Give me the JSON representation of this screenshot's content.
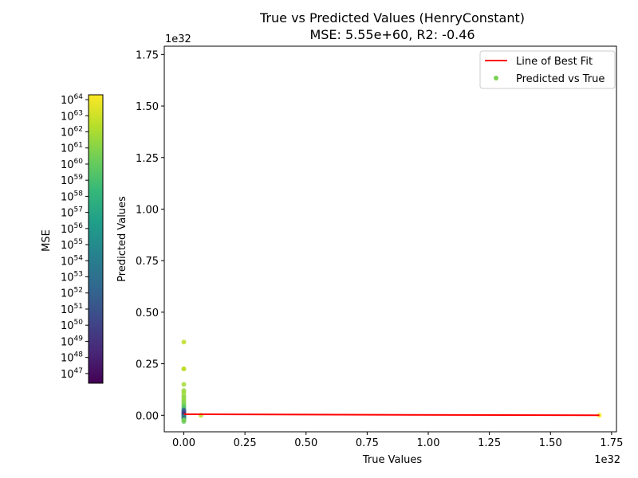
{
  "chart_data": {
    "type": "scatter",
    "title_line1": "True vs Predicted Values (HenryConstant)",
    "title_line2": "MSE: 5.55e+60, R2: -0.46",
    "xlabel": "True Values",
    "ylabel": "Predicted Values",
    "x_offset_text": "1e32",
    "y_offset_text": "1e32",
    "xlim": [
      -0.08,
      1.77
    ],
    "ylim": [
      -0.08,
      1.79
    ],
    "x_ticks": [
      "0.00",
      "0.25",
      "0.50",
      "0.75",
      "1.00",
      "1.25",
      "1.50",
      "1.75"
    ],
    "x_tick_values": [
      0.0,
      0.25,
      0.5,
      0.75,
      1.0,
      1.25,
      1.5,
      1.75
    ],
    "y_ticks": [
      "0.00",
      "0.25",
      "0.50",
      "0.75",
      "1.00",
      "1.25",
      "1.50",
      "1.75"
    ],
    "y_tick_values": [
      0.0,
      0.25,
      0.5,
      0.75,
      1.0,
      1.25,
      1.5,
      1.75
    ],
    "best_fit_line": {
      "name": "Line of Best Fit",
      "color": "#ff0000",
      "x": [
        0.0,
        1.7
      ],
      "y": [
        0.005,
        0.0
      ]
    },
    "scatter_series": {
      "name": "Predicted vs True",
      "legend_color": "#7ad151",
      "points": [
        {
          "x": 0.0,
          "y": 0.355,
          "color": "#bddf26"
        },
        {
          "x": 0.0,
          "y": 0.225,
          "color": "#b5de2b"
        },
        {
          "x": 0.0,
          "y": 0.225,
          "color": "#bddf26"
        },
        {
          "x": 0.0,
          "y": 0.15,
          "color": "#a5db36"
        },
        {
          "x": 0.0,
          "y": 0.12,
          "color": "#95d840"
        },
        {
          "x": 0.0,
          "y": 0.11,
          "color": "#a0da39"
        },
        {
          "x": 0.0,
          "y": 0.095,
          "color": "#95d840"
        },
        {
          "x": 0.0,
          "y": 0.085,
          "color": "#8ed645"
        },
        {
          "x": 0.0,
          "y": 0.075,
          "color": "#95d840"
        },
        {
          "x": 0.0,
          "y": 0.065,
          "color": "#86d549"
        },
        {
          "x": 0.0,
          "y": 0.055,
          "color": "#7ad151"
        },
        {
          "x": 0.0,
          "y": 0.045,
          "color": "#6ccd5a"
        },
        {
          "x": 0.0,
          "y": 0.035,
          "color": "#4ac16d"
        },
        {
          "x": 0.0,
          "y": 0.025,
          "color": "#31688e"
        },
        {
          "x": 0.0,
          "y": 0.018,
          "color": "#3b528b"
        },
        {
          "x": 0.0,
          "y": 0.01,
          "color": "#414487"
        },
        {
          "x": 0.0,
          "y": 0.005,
          "color": "#472c7a"
        },
        {
          "x": 0.0,
          "y": 0.0,
          "color": "#3b528b"
        },
        {
          "x": 0.0,
          "y": -0.005,
          "color": "#2c728e"
        },
        {
          "x": 0.0,
          "y": -0.01,
          "color": "#21918c"
        },
        {
          "x": 0.0,
          "y": -0.015,
          "color": "#3b528b"
        },
        {
          "x": 0.0,
          "y": -0.02,
          "color": "#52c569"
        },
        {
          "x": 0.0,
          "y": -0.025,
          "color": "#7ad151"
        },
        {
          "x": 0.0,
          "y": -0.03,
          "color": "#6ccd5a"
        },
        {
          "x": 0.07,
          "y": 0.0,
          "color": "#bddf26"
        },
        {
          "x": 1.7,
          "y": 0.0,
          "color": "#fde725"
        }
      ]
    },
    "legend_position": "top-right",
    "colorbar": {
      "label": "MSE",
      "scale": "log",
      "min_exp": 46.4,
      "max_exp": 64.3,
      "tick_exponents": [
        "47",
        "48",
        "49",
        "50",
        "51",
        "52",
        "53",
        "54",
        "55",
        "56",
        "57",
        "58",
        "59",
        "60",
        "61",
        "62",
        "63",
        "64"
      ],
      "tick_base": "10",
      "colormap": [
        "#440154",
        "#482878",
        "#3e4989",
        "#31688e",
        "#26828e",
        "#1f9e89",
        "#35b779",
        "#6ece58",
        "#b5de2b",
        "#fde725"
      ]
    }
  }
}
